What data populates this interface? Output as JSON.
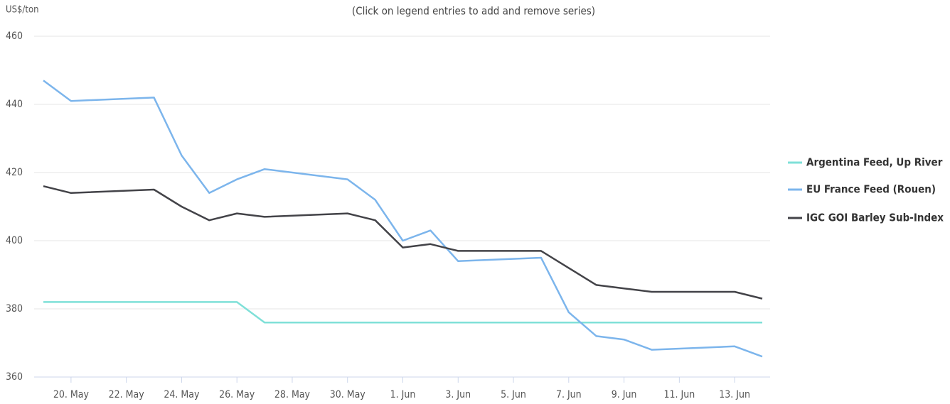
{
  "chart_data": {
    "type": "line",
    "subtitle": "(Click on legend entries to add and remove series)",
    "y_label": "US$/ton",
    "x": [
      "05-19",
      "05-20",
      "05-23",
      "05-24",
      "05-25",
      "05-26",
      "05-27",
      "05-30",
      "05-31",
      "06-01",
      "06-02",
      "06-03",
      "06-06",
      "06-07",
      "06-08",
      "06-09",
      "06-10",
      "06-13",
      "06-14"
    ],
    "xlim": [
      "05-19",
      "06-14"
    ],
    "xticks": [
      {
        "value": "05-20",
        "label": "20. May"
      },
      {
        "value": "05-22",
        "label": "22. May"
      },
      {
        "value": "05-24",
        "label": "24. May"
      },
      {
        "value": "05-26",
        "label": "26. May"
      },
      {
        "value": "05-28",
        "label": "28. May"
      },
      {
        "value": "05-30",
        "label": "30. May"
      },
      {
        "value": "06-01",
        "label": "1. Jun"
      },
      {
        "value": "06-03",
        "label": "3. Jun"
      },
      {
        "value": "06-05",
        "label": "5. Jun"
      },
      {
        "value": "06-07",
        "label": "7. Jun"
      },
      {
        "value": "06-09",
        "label": "9. Jun"
      },
      {
        "value": "06-11",
        "label": "11. Jun"
      },
      {
        "value": "06-13",
        "label": "13. Jun"
      }
    ],
    "ylim": [
      360,
      460
    ],
    "yticks": [
      360,
      380,
      400,
      420,
      440,
      460
    ],
    "grid": true,
    "legend": "right",
    "series": [
      {
        "name": "Argentina Feed, Up River",
        "color": "#7fe0d8",
        "values": [
          382,
          382,
          382,
          382,
          382,
          382,
          376,
          376,
          376,
          376,
          376,
          376,
          376,
          376,
          376,
          376,
          376,
          376,
          376
        ]
      },
      {
        "name": "EU France Feed (Rouen)",
        "color": "#7cb5ec",
        "values": [
          447,
          441,
          442,
          425,
          414,
          418,
          421,
          418,
          412,
          400,
          403,
          394,
          395,
          379,
          372,
          371,
          368,
          369,
          366
        ]
      },
      {
        "name": "IGC GOI Barley Sub-Index",
        "color": "#434348",
        "values": [
          416,
          414,
          415,
          410,
          406,
          408,
          407,
          408,
          406,
          398,
          399,
          397,
          397,
          392,
          387,
          386,
          385,
          385,
          383
        ]
      }
    ]
  }
}
